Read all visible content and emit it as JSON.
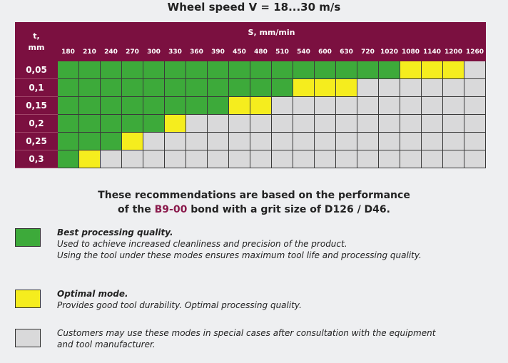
{
  "title": "Wheel speed V = 18...30 m/s",
  "table": {
    "t_header": "t,",
    "t_unit": "mm",
    "s_header": "S, mm/min",
    "columns": [
      "180",
      "210",
      "240",
      "270",
      "300",
      "330",
      "360",
      "390",
      "450",
      "480",
      "510",
      "540",
      "600",
      "630",
      "720",
      "1020",
      "1080",
      "1140",
      "1200",
      "1260"
    ],
    "rows": [
      {
        "t": "0,05",
        "cells": "GGGGGGGGGGGGGGGGYYYX"
      },
      {
        "t": "0,1",
        "cells": "GGGGGGGGGGGYYYXXXXXX"
      },
      {
        "t": "0,15",
        "cells": "GGGGGGGGYYXXXXXXXXXX"
      },
      {
        "t": "0,2",
        "cells": "GGGGGYXXXXXXXXXXXXXX"
      },
      {
        "t": "0,25",
        "cells": "GGGYXXXXXXXXXXXXXXXX"
      },
      {
        "t": "0,3",
        "cells": "GYXXXXXXXXXXXXXXXXXX"
      }
    ],
    "colors": {
      "G": "#3daa3a",
      "Y": "#f5ed1e",
      "X": "#d9d9da"
    }
  },
  "note": {
    "line1": "These recommendations are based on the performance",
    "line2_pre": "of the ",
    "line2_bond": "B9-00",
    "line2_post": " bond with a grit size of D126 / D46."
  },
  "legend": {
    "green_title": "Best processing quality.",
    "green_line1": "Used to achieve increased cleanliness and precision of the product.",
    "green_line2": "Using the tool under these modes ensures maximum tool life and processing quality.",
    "yellow_title": "Optimal mode.",
    "yellow_line1": "Provides good tool durability. Optimal processing quality.",
    "gray_line1": "Customers may use these modes in special cases after consultation with the equipment",
    "gray_line2": "and tool manufacturer."
  }
}
